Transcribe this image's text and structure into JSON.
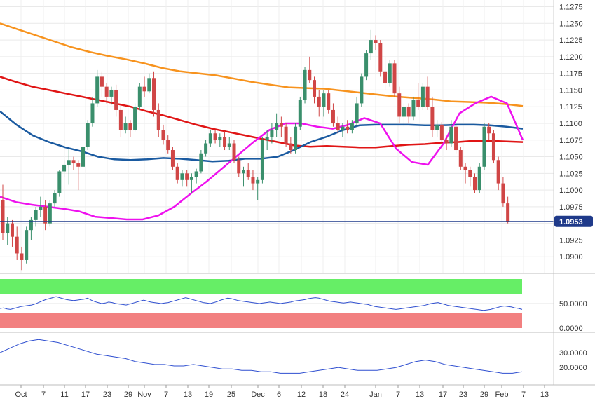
{
  "chart_data": [
    {
      "type": "candlestick",
      "panel": "price",
      "title": "",
      "ylim": [
        1.0875,
        1.1285
      ],
      "y_ticks": [
        "1.1275",
        "1.1250",
        "1.1225",
        "1.1200",
        "1.1175",
        "1.1150",
        "1.1125",
        "1.1100",
        "1.1075",
        "1.1050",
        "1.1025",
        "1.1000",
        "1.0975",
        "1.0950",
        "1.0925",
        "1.0900"
      ],
      "current_price": "1.0953",
      "x_ticks": [
        "Oct",
        "7",
        "11",
        "17",
        "23",
        "29",
        "Nov",
        "7",
        "13",
        "19",
        "25",
        "Dec",
        "6",
        "12",
        "18",
        "24",
        "Jan",
        "7",
        "13",
        "17",
        "23",
        "29",
        "Feb",
        "7",
        "13"
      ],
      "colors": {
        "up": "#3a8f6c",
        "down": "#d04646",
        "sma20": "#ee11ee",
        "sma50": "#1a5aa0",
        "sma100": "#e01515",
        "sma200": "#f7931e",
        "price_line": "#1f3a8a",
        "tag_bg": "#1f3a8a"
      },
      "candles": [
        [
          1.0985,
          1.1008,
          1.0925,
          1.0935
        ],
        [
          1.0935,
          1.096,
          1.0918,
          1.095
        ],
        [
          1.095,
          1.0955,
          1.0915,
          1.093
        ],
        [
          1.093,
          1.0945,
          1.0895,
          1.0905
        ],
        [
          1.0905,
          1.0915,
          1.088,
          1.0895
        ],
        [
          1.0895,
          1.0945,
          1.089,
          1.094
        ],
        [
          1.094,
          1.096,
          1.0925,
          1.0955
        ],
        [
          1.0955,
          1.0975,
          1.0945,
          1.097
        ],
        [
          1.097,
          1.099,
          1.096,
          1.0975
        ],
        [
          1.0975,
          1.0985,
          1.094,
          1.095
        ],
        [
          1.095,
          1.0985,
          1.0945,
          1.098
        ],
        [
          1.098,
          1.1,
          1.0975,
          1.0995
        ],
        [
          1.0995,
          1.103,
          1.099,
          1.1028
        ],
        [
          1.1028,
          1.1045,
          1.102,
          1.1038
        ],
        [
          1.1038,
          1.1062,
          1.1008,
          1.1045
        ],
        [
          1.1045,
          1.105,
          1.103,
          1.104
        ],
        [
          1.104,
          1.1045,
          1.1,
          1.1035
        ],
        [
          1.1035,
          1.107,
          1.103,
          1.1065
        ],
        [
          1.1065,
          1.1105,
          1.106,
          1.11
        ],
        [
          1.11,
          1.114,
          1.1095,
          1.113
        ],
        [
          1.113,
          1.118,
          1.1125,
          1.117
        ],
        [
          1.117,
          1.1178,
          1.114,
          1.1155
        ],
        [
          1.1155,
          1.116,
          1.113,
          1.114
        ],
        [
          1.114,
          1.1155,
          1.1128,
          1.115
        ],
        [
          1.115,
          1.1158,
          1.111,
          1.112
        ],
        [
          1.112,
          1.113,
          1.108,
          1.109
        ],
        [
          1.109,
          1.111,
          1.1085,
          1.11
        ],
        [
          1.11,
          1.1105,
          1.108,
          1.109
        ],
        [
          1.109,
          1.113,
          1.1088,
          1.1125
        ],
        [
          1.1125,
          1.116,
          1.112,
          1.1155
        ],
        [
          1.1155,
          1.117,
          1.114,
          1.1148
        ],
        [
          1.1148,
          1.1175,
          1.1145,
          1.1168
        ],
        [
          1.1168,
          1.1178,
          1.111,
          1.112
        ],
        [
          1.112,
          1.113,
          1.108,
          1.109
        ],
        [
          1.109,
          1.1098,
          1.1068,
          1.1075
        ],
        [
          1.1075,
          1.1082,
          1.1055,
          1.106
        ],
        [
          1.106,
          1.1065,
          1.103,
          1.1035
        ],
        [
          1.1035,
          1.104,
          1.101,
          1.1015
        ],
        [
          1.1015,
          1.103,
          1.1005,
          1.1025
        ],
        [
          1.1025,
          1.103,
          1.1005,
          1.1015
        ],
        [
          1.1015,
          1.1025,
          1.0995,
          1.102
        ],
        [
          1.102,
          1.1032,
          1.101,
          1.1028
        ],
        [
          1.1028,
          1.106,
          1.1025,
          1.1055
        ],
        [
          1.1055,
          1.1075,
          1.105,
          1.107
        ],
        [
          1.107,
          1.109,
          1.1065,
          1.1085
        ],
        [
          1.1085,
          1.109,
          1.107,
          1.1075
        ],
        [
          1.1075,
          1.1085,
          1.1065,
          1.108
        ],
        [
          1.108,
          1.1088,
          1.106,
          1.1065
        ],
        [
          1.1065,
          1.108,
          1.106,
          1.107
        ],
        [
          1.107,
          1.1075,
          1.104,
          1.1045
        ],
        [
          1.1045,
          1.105,
          1.102,
          1.1025
        ],
        [
          1.1025,
          1.1035,
          1.1005,
          1.103
        ],
        [
          1.103,
          1.104,
          1.1015,
          1.102
        ],
        [
          1.102,
          1.103,
          1.1,
          1.101
        ],
        [
          1.101,
          1.102,
          1.0985,
          1.1015
        ],
        [
          1.1015,
          1.108,
          1.101,
          1.1075
        ],
        [
          1.1075,
          1.109,
          1.106,
          1.108
        ],
        [
          1.108,
          1.11,
          1.107,
          1.109
        ],
        [
          1.109,
          1.1115,
          1.108,
          1.11
        ],
        [
          1.11,
          1.111,
          1.108,
          1.1095
        ],
        [
          1.1095,
          1.11,
          1.1065,
          1.107
        ],
        [
          1.107,
          1.108,
          1.1055,
          1.106
        ],
        [
          1.106,
          1.11,
          1.1055,
          1.1095
        ],
        [
          1.1095,
          1.114,
          1.109,
          1.1135
        ],
        [
          1.1135,
          1.1185,
          1.113,
          1.118
        ],
        [
          1.118,
          1.12,
          1.116,
          1.1165
        ],
        [
          1.1165,
          1.117,
          1.113,
          1.114
        ],
        [
          1.114,
          1.115,
          1.111,
          1.1125
        ],
        [
          1.1125,
          1.115,
          1.111,
          1.1145
        ],
        [
          1.1145,
          1.115,
          1.1115,
          1.112
        ],
        [
          1.112,
          1.113,
          1.1095,
          1.11
        ],
        [
          1.11,
          1.111,
          1.1085,
          1.109
        ],
        [
          1.109,
          1.11,
          1.108,
          1.1095
        ],
        [
          1.1095,
          1.1105,
          1.1085,
          1.109
        ],
        [
          1.109,
          1.1105,
          1.1085,
          1.11
        ],
        [
          1.11,
          1.114,
          1.1095,
          1.113
        ],
        [
          1.113,
          1.1175,
          1.1125,
          1.117
        ],
        [
          1.117,
          1.121,
          1.1165,
          1.1205
        ],
        [
          1.1205,
          1.124,
          1.1195,
          1.1225
        ],
        [
          1.1225,
          1.1232,
          1.121,
          1.122
        ],
        [
          1.122,
          1.1225,
          1.117,
          1.1178
        ],
        [
          1.1178,
          1.12,
          1.115,
          1.116
        ],
        [
          1.116,
          1.1195,
          1.1155,
          1.119
        ],
        [
          1.119,
          1.1195,
          1.114,
          1.1145
        ],
        [
          1.1145,
          1.1155,
          1.11,
          1.111
        ],
        [
          1.111,
          1.113,
          1.1095,
          1.1125
        ],
        [
          1.1125,
          1.113,
          1.11,
          1.111
        ],
        [
          1.111,
          1.114,
          1.1105,
          1.1135
        ],
        [
          1.1135,
          1.116,
          1.112,
          1.1125
        ],
        [
          1.1125,
          1.116,
          1.112,
          1.1155
        ],
        [
          1.1155,
          1.117,
          1.112,
          1.1125
        ],
        [
          1.1125,
          1.114,
          1.108,
          1.109
        ],
        [
          1.109,
          1.1105,
          1.108,
          1.1098
        ],
        [
          1.1098,
          1.1102,
          1.107,
          1.1075
        ],
        [
          1.1075,
          1.108,
          1.106,
          1.107
        ],
        [
          1.107,
          1.1105,
          1.1065,
          1.1095
        ],
        [
          1.1095,
          1.11,
          1.1055,
          1.106
        ],
        [
          1.106,
          1.1065,
          1.103,
          1.1035
        ],
        [
          1.1035,
          1.104,
          1.101,
          1.103
        ],
        [
          1.103,
          1.1035,
          1.1005,
          1.102
        ],
        [
          1.102,
          1.1025,
          1.0995,
          1.1
        ],
        [
          1.1,
          1.104,
          1.0995,
          1.1035
        ],
        [
          1.1035,
          1.11,
          1.103,
          1.1095
        ],
        [
          1.1095,
          1.11,
          1.1075,
          1.1085
        ],
        [
          1.1085,
          1.109,
          1.104,
          1.1045
        ],
        [
          1.1045,
          1.105,
          1.1,
          1.101
        ],
        [
          1.101,
          1.102,
          1.0975,
          1.098
        ],
        [
          1.098,
          1.099,
          1.095,
          1.0953
        ]
      ],
      "sma20": [
        1.099,
        1.0982,
        1.0978,
        1.0975,
        1.0972,
        1.0968,
        1.096,
        1.0958,
        1.0956,
        1.0956,
        1.0962,
        1.0975,
        1.0994,
        1.1012,
        1.1032,
        1.1052,
        1.1072,
        1.109,
        1.11,
        1.11,
        1.1095,
        1.1092,
        1.1098,
        1.1108,
        1.11,
        1.1062,
        1.1042,
        1.1038,
        1.107,
        1.1115,
        1.113,
        1.114,
        1.113,
        1.1075
      ],
      "sma50": [
        1.1118,
        1.1098,
        1.1082,
        1.1072,
        1.1064,
        1.1058,
        1.105,
        1.1046,
        1.1045,
        1.1046,
        1.1048,
        1.1047,
        1.1045,
        1.1043,
        1.1044,
        1.1047,
        1.1047,
        1.105,
        1.106,
        1.1072,
        1.108,
        1.109,
        1.1097,
        1.1098,
        1.1098,
        1.1098,
        1.1097,
        1.1097,
        1.1098,
        1.1098,
        1.1097,
        1.1095,
        1.1092
      ],
      "sma100": [
        1.117,
        1.1162,
        1.1155,
        1.115,
        1.1145,
        1.114,
        1.1135,
        1.113,
        1.1125,
        1.1118,
        1.1112,
        1.1105,
        1.1098,
        1.1092,
        1.1087,
        1.1082,
        1.1077,
        1.1072,
        1.1067,
        1.1065,
        1.1066,
        1.1065,
        1.1064,
        1.1064,
        1.1066,
        1.1068,
        1.1069,
        1.1071,
        1.1072,
        1.1074,
        1.1074,
        1.1073,
        1.1072
      ],
      "sma200": [
        1.125,
        1.1241,
        1.1232,
        1.1223,
        1.1214,
        1.1207,
        1.1201,
        1.1196,
        1.119,
        1.1183,
        1.1178,
        1.1175,
        1.1172,
        1.1167,
        1.1162,
        1.1158,
        1.1154,
        1.1153,
        1.1152,
        1.1149,
        1.1146,
        1.1143,
        1.114,
        1.1138,
        1.1136,
        1.1133,
        1.1132,
        1.1131,
        1.1129,
        1.1126
      ]
    },
    {
      "type": "line",
      "panel": "oscillator-1",
      "ylim": [
        0,
        100
      ],
      "y_ticks": [
        "50.0000",
        "0.0000"
      ],
      "overbought_band": [
        70,
        100
      ],
      "oversold_band": [
        0,
        30
      ],
      "band_colors": {
        "overbought": "#66ee66",
        "oversold": "#f28080"
      },
      "line_color": "#2f4fd0",
      "values": [
        40,
        41,
        39,
        38,
        40,
        42,
        44,
        45,
        46,
        47,
        49,
        52,
        55,
        58,
        60,
        62,
        64,
        62,
        60,
        58,
        57,
        56,
        57,
        58,
        59,
        61,
        57,
        54,
        52,
        50,
        51,
        53,
        52,
        50,
        49,
        48,
        47,
        49,
        51,
        53,
        55,
        57,
        55,
        53,
        52,
        51,
        50,
        51,
        52,
        54,
        56,
        58,
        60,
        62,
        60,
        58,
        56,
        54,
        52,
        51,
        50,
        52,
        54,
        57,
        59,
        61,
        60,
        58,
        56,
        55,
        54,
        53,
        52,
        51,
        50,
        51,
        52,
        53,
        52,
        51,
        50,
        51,
        52,
        53,
        55,
        56,
        57,
        58,
        60,
        61,
        62,
        61,
        59,
        57,
        55,
        54,
        53,
        52,
        51,
        52,
        53,
        52,
        51,
        50,
        49,
        48,
        46,
        44,
        43,
        42,
        41,
        40,
        39,
        38,
        39,
        40,
        41,
        42,
        43,
        44,
        45,
        46,
        48,
        50,
        51,
        52,
        50,
        48,
        46,
        45,
        44,
        43,
        42,
        41,
        40,
        39,
        38,
        37,
        36,
        37,
        38,
        40,
        42,
        44,
        45,
        44,
        43,
        41,
        40,
        38
      ]
    },
    {
      "type": "line",
      "panel": "oscillator-2",
      "ylim": [
        10,
        42
      ],
      "y_ticks": [
        "30.0000",
        "20.0000"
      ],
      "line_color": "#2f4fd0",
      "values": [
        30,
        33,
        36,
        38,
        39,
        38,
        37,
        35,
        33,
        31,
        29,
        28,
        27,
        26,
        24,
        23,
        22,
        22,
        21,
        21,
        22,
        21,
        20,
        19,
        19,
        18,
        18,
        17,
        17,
        16,
        16,
        16,
        17,
        18,
        19,
        20,
        19,
        18,
        18,
        18,
        19,
        20,
        22,
        24,
        25,
        24,
        22,
        21,
        20,
        19,
        18,
        17,
        16,
        16,
        17
      ]
    }
  ]
}
